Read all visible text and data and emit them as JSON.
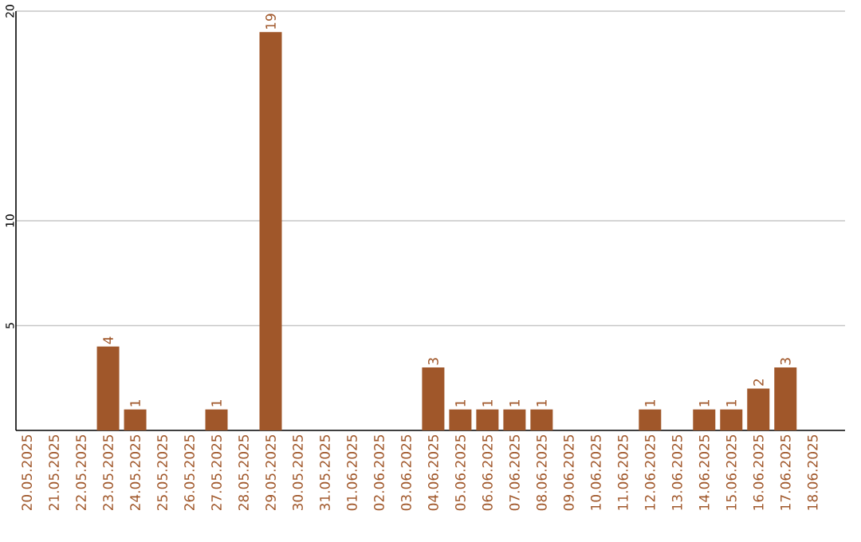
{
  "chart_data": {
    "type": "bar",
    "categories": [
      "20.05.2025",
      "21.05.2025",
      "22.05.2025",
      "23.05.2025",
      "24.05.2025",
      "25.05.2025",
      "26.05.2025",
      "27.05.2025",
      "28.05.2025",
      "29.05.2025",
      "30.05.2025",
      "31.05.2025",
      "01.06.2025",
      "02.06.2025",
      "03.06.2025",
      "04.06.2025",
      "05.06.2025",
      "06.06.2025",
      "07.06.2025",
      "08.06.2025",
      "09.06.2025",
      "10.06.2025",
      "11.06.2025",
      "12.06.2025",
      "13.06.2025",
      "14.06.2025",
      "15.06.2025",
      "16.06.2025",
      "17.06.2025",
      "18.06.2025"
    ],
    "values": [
      0,
      0,
      0,
      4,
      1,
      0,
      0,
      1,
      0,
      19,
      0,
      0,
      0,
      0,
      0,
      3,
      1,
      1,
      1,
      1,
      0,
      0,
      0,
      1,
      0,
      1,
      1,
      2,
      3,
      0
    ],
    "value_labels": [
      null,
      null,
      null,
      "4",
      "1",
      null,
      null,
      "1",
      null,
      "19",
      null,
      null,
      null,
      null,
      null,
      "3",
      "1",
      "1",
      "1",
      "1",
      null,
      null,
      null,
      "1",
      null,
      "1",
      "1",
      "2",
      "3",
      null
    ],
    "color": "#a0572a",
    "ylim": [
      0,
      20
    ],
    "yticks": [
      5,
      10,
      20
    ],
    "grid": "y"
  }
}
